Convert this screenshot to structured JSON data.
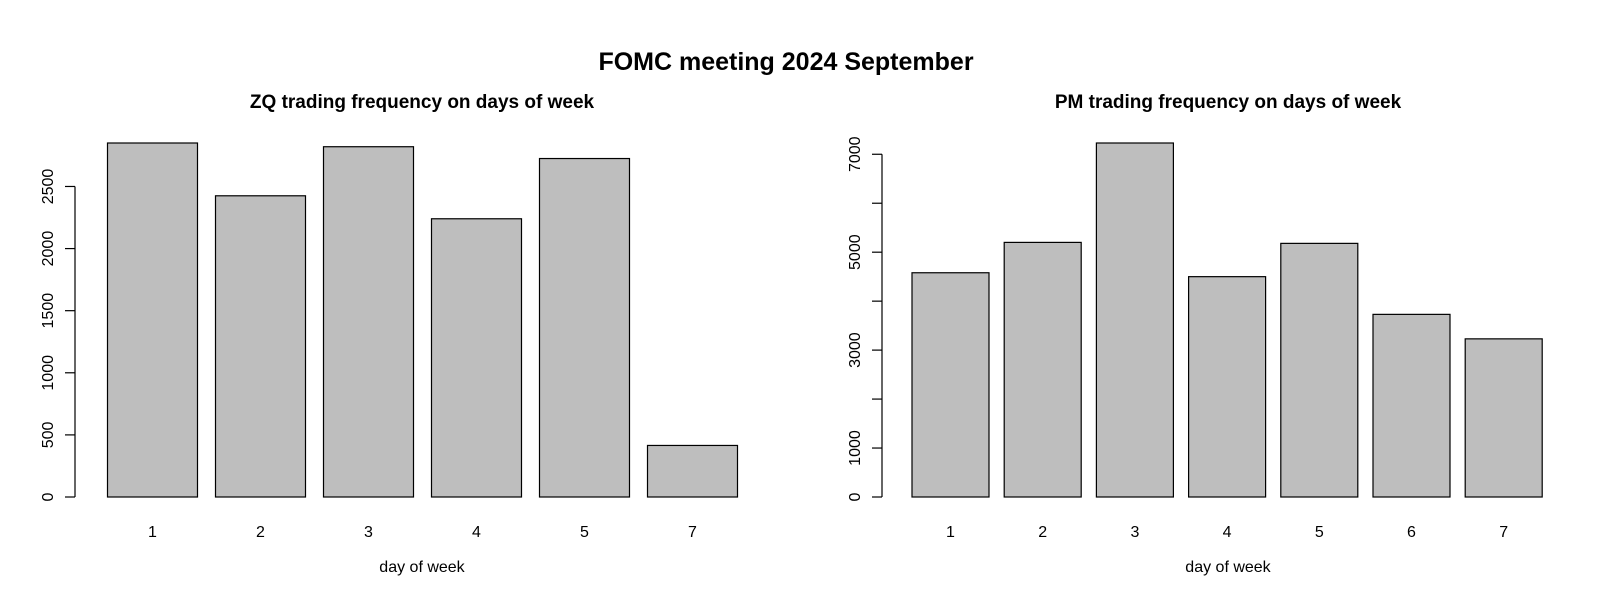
{
  "title": "FOMC meeting 2024 September",
  "chart_data": [
    {
      "type": "bar",
      "title": "ZQ trading frequency on days of week",
      "xlabel": "day of week",
      "ylabel": "",
      "categories": [
        "1",
        "2",
        "3",
        "4",
        "5",
        "7"
      ],
      "values": [
        2850,
        2425,
        2820,
        2240,
        2725,
        415
      ],
      "ylim": [
        0,
        2850
      ],
      "yticks": [
        0,
        500,
        1000,
        1500,
        2000,
        2500
      ],
      "ytick_labels": [
        "0",
        "500",
        "1000",
        "1500",
        "2000",
        "2500"
      ],
      "bar_color": "#bebebe",
      "border_color": "#000000",
      "grid": false
    },
    {
      "type": "bar",
      "title": "PM trading frequency on days of week",
      "xlabel": "day of week",
      "ylabel": "",
      "categories": [
        "1",
        "2",
        "3",
        "4",
        "5",
        "6",
        "7"
      ],
      "values": [
        4580,
        5200,
        7230,
        4500,
        5180,
        3730,
        3230
      ],
      "ylim": [
        0,
        7230
      ],
      "yticks": [
        0,
        1000,
        2000,
        3000,
        4000,
        5000,
        6000,
        7000
      ],
      "ytick_labels": [
        "0",
        "1000",
        "",
        "3000",
        "",
        "5000",
        "",
        "7000"
      ],
      "bar_color": "#bebebe",
      "border_color": "#000000",
      "grid": false
    }
  ]
}
